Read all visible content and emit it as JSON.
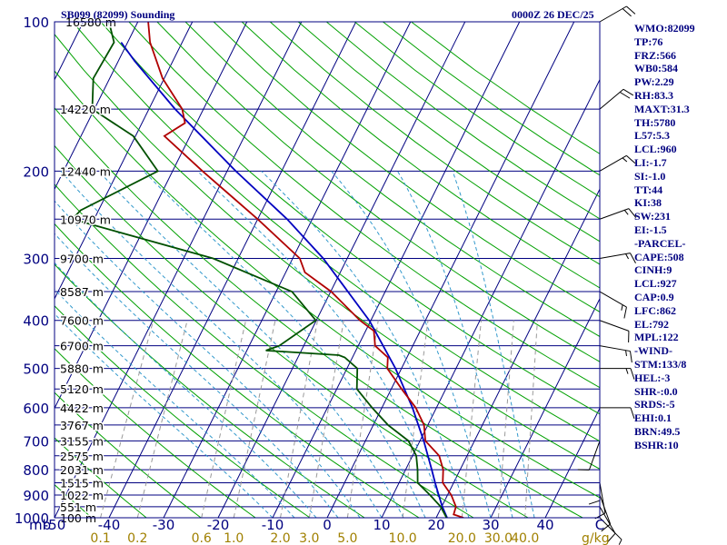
{
  "header": {
    "station": "SB099 (82099) Sounding",
    "time": "0000Z 26 DEC/25"
  },
  "indices": [
    "WMO:82099",
    "TP:76",
    "FRZ:566",
    "WB0:584",
    "PW:2.29",
    "RH:83.3",
    "MAXT:31.3",
    "TH:5780",
    "L57:5.3",
    "LCL:960",
    "LI:-1.7",
    "SI:-1.0",
    "TT:44",
    "KI:38",
    "SW:231",
    "EI:-1.5",
    "-PARCEL-",
    "CAPE:508",
    "CINH:9",
    "LCL:927",
    "CAP:0.9",
    "LFC:862",
    "EL:792",
    "MPL:122",
    "-WIND-",
    "STM:133/8",
    "HEL:-3",
    "SHR-:0.0",
    "SRDS:-5",
    "EHI:0.1",
    "BRN:49.5",
    "BSHR:10"
  ],
  "colors": {
    "background": "#ffffff",
    "isobar": "#000080",
    "isotherm": "#000080",
    "dry_adiabat": "#00a000",
    "moist_adiabat": "#3399cc",
    "mixing_ratio": "#999999",
    "temperature": "#b00000",
    "dewpoint": "#005000",
    "parcel": "#0000c0",
    "wind_barbs": "#000000",
    "axis_text": "#000080",
    "mixing_text": "#a08000"
  },
  "chart_data": {
    "type": "line",
    "title": "SB099 (82099) Sounding",
    "subtitle": "0000Z 26 DEC/25",
    "pressure_axis": {
      "label": "mb",
      "scale": "log",
      "range": [
        1000,
        100
      ],
      "ticks": [
        100,
        200,
        300,
        400,
        500,
        600,
        700,
        800,
        900,
        1000
      ],
      "tick_labels": [
        "100",
        "200",
        "300",
        "400",
        "500",
        "600",
        "700",
        "800",
        "900",
        "1000"
      ]
    },
    "temperature_axis": {
      "range": [
        -50,
        50
      ],
      "ticks": [
        -50,
        -40,
        -30,
        -20,
        -10,
        0,
        10,
        20,
        30,
        40,
        50
      ],
      "tick_labels": [
        "-50",
        "-40",
        "-30",
        "-20",
        "-10",
        "0",
        "10",
        "20",
        "30",
        "40",
        "C"
      ]
    },
    "mixing_ratio_axis": {
      "unit": "g/kg",
      "values": [
        0.1,
        0.2,
        0.6,
        1.0,
        2.0,
        3.0,
        5.0,
        10.0,
        20.0,
        30.0,
        40.0
      ],
      "labels": [
        "0.1",
        "0.2",
        "0.6",
        "1.0",
        "2.0",
        "3.0",
        "5.0",
        "10.0",
        "20.0",
        "30.0",
        "40.0"
      ]
    },
    "heights": [
      {
        "p": 100,
        "label": "16580 m"
      },
      {
        "p": 150,
        "label": "14220 m"
      },
      {
        "p": 200,
        "label": "12440 m"
      },
      {
        "p": 250,
        "label": "10970 m"
      },
      {
        "p": 300,
        "label": "9700 m"
      },
      {
        "p": 350,
        "label": "8587 m"
      },
      {
        "p": 400,
        "label": "7600 m"
      },
      {
        "p": 450,
        "label": "6700 m"
      },
      {
        "p": 500,
        "label": "5880 m"
      },
      {
        "p": 550,
        "label": "5120 m"
      },
      {
        "p": 600,
        "label": "4422 m"
      },
      {
        "p": 650,
        "label": "3767 m"
      },
      {
        "p": 700,
        "label": "3155 m"
      },
      {
        "p": 750,
        "label": "2575 m"
      },
      {
        "p": 800,
        "label": "2031 m"
      },
      {
        "p": 850,
        "label": "1515 m"
      },
      {
        "p": 900,
        "label": "1022 m"
      },
      {
        "p": 950,
        "label": "551 m"
      },
      {
        "p": 1000,
        "label": "100 m"
      }
    ],
    "temperature": [
      {
        "p": 1000,
        "t": 25.0
      },
      {
        "p": 985,
        "t": 22.9
      },
      {
        "p": 950,
        "t": 22.6
      },
      {
        "p": 900,
        "t": 20.7
      },
      {
        "p": 850,
        "t": 18.0
      },
      {
        "p": 800,
        "t": 16.9
      },
      {
        "p": 750,
        "t": 14.9
      },
      {
        "p": 700,
        "t": 11.0
      },
      {
        "p": 650,
        "t": 9.3
      },
      {
        "p": 600,
        "t": 6.2
      },
      {
        "p": 550,
        "t": 1.9
      },
      {
        "p": 500,
        "t": -2.6
      },
      {
        "p": 475,
        "t": -3.5
      },
      {
        "p": 450,
        "t": -6.9
      },
      {
        "p": 420,
        "t": -8.5
      },
      {
        "p": 400,
        "t": -12.0
      },
      {
        "p": 350,
        "t": -19.9
      },
      {
        "p": 320,
        "t": -26.5
      },
      {
        "p": 300,
        "t": -28.7
      },
      {
        "p": 250,
        "t": -40.0
      },
      {
        "p": 200,
        "t": -54.5
      },
      {
        "p": 170,
        "t": -64.7
      },
      {
        "p": 160,
        "t": -62.1
      },
      {
        "p": 150,
        "t": -63.9
      },
      {
        "p": 130,
        "t": -70.3
      },
      {
        "p": 110,
        "t": -75.9
      },
      {
        "p": 100,
        "t": -78.1
      }
    ],
    "dewpoint": [
      {
        "p": 1000,
        "t": 21.9
      },
      {
        "p": 950,
        "t": 19.8
      },
      {
        "p": 900,
        "t": 16.8
      },
      {
        "p": 850,
        "t": 13.4
      },
      {
        "p": 800,
        "t": 12.2
      },
      {
        "p": 750,
        "t": 10.7
      },
      {
        "p": 700,
        "t": 7.9
      },
      {
        "p": 650,
        "t": 2.7
      },
      {
        "p": 600,
        "t": -1.8
      },
      {
        "p": 550,
        "t": -6.3
      },
      {
        "p": 500,
        "t": -8.1
      },
      {
        "p": 475,
        "t": -11.4
      },
      {
        "p": 470,
        "t": -12.7
      },
      {
        "p": 460,
        "t": -26.5
      },
      {
        "p": 450,
        "t": -24.5
      },
      {
        "p": 400,
        "t": -20.1
      },
      {
        "p": 350,
        "t": -27.1
      },
      {
        "p": 300,
        "t": -44.6
      },
      {
        "p": 250,
        "t": -74.0
      },
      {
        "p": 240,
        "t": -73.3
      },
      {
        "p": 200,
        "t": -62.7
      },
      {
        "p": 170,
        "t": -70.4
      },
      {
        "p": 150,
        "t": -80.4
      },
      {
        "p": 130,
        "t": -83.0
      },
      {
        "p": 110,
        "t": -82.5
      },
      {
        "p": 100,
        "t": -85.3
      }
    ],
    "parcel": [
      {
        "p": 1000,
        "t": 22.0
      },
      {
        "p": 950,
        "t": 20.1
      },
      {
        "p": 900,
        "t": 18.4
      },
      {
        "p": 850,
        "t": 16.6
      },
      {
        "p": 800,
        "t": 14.8
      },
      {
        "p": 700,
        "t": 10.7
      },
      {
        "p": 600,
        "t": 5.6
      },
      {
        "p": 500,
        "t": -1.1
      },
      {
        "p": 400,
        "t": -10.3
      },
      {
        "p": 300,
        "t": -24.4
      },
      {
        "p": 250,
        "t": -34.6
      },
      {
        "p": 200,
        "t": -48.4
      },
      {
        "p": 150,
        "t": -65.2
      },
      {
        "p": 120,
        "t": -77.0
      },
      {
        "p": 110,
        "t": -81.2
      }
    ],
    "wind_barbs": [
      {
        "p": 1000,
        "dir": 135,
        "spd": 5
      },
      {
        "p": 950,
        "dir": 150,
        "spd": 10
      },
      {
        "p": 900,
        "dir": 160,
        "spd": 10
      },
      {
        "p": 850,
        "dir": 170,
        "spd": 10
      },
      {
        "p": 800,
        "dir": 180,
        "spd": 10
      },
      {
        "p": 700,
        "dir": 200,
        "spd": 10
      },
      {
        "p": 600,
        "dir": 90,
        "spd": 10
      },
      {
        "p": 500,
        "dir": 90,
        "spd": 15
      },
      {
        "p": 450,
        "dir": 100,
        "spd": 15
      },
      {
        "p": 400,
        "dir": 110,
        "spd": 10
      },
      {
        "p": 350,
        "dir": 120,
        "spd": 15
      },
      {
        "p": 300,
        "dir": 80,
        "spd": 15
      },
      {
        "p": 250,
        "dir": 70,
        "spd": 15
      },
      {
        "p": 200,
        "dir": 60,
        "spd": 15
      },
      {
        "p": 150,
        "dir": 50,
        "spd": 20
      },
      {
        "p": 100,
        "dir": 60,
        "spd": 20
      }
    ]
  }
}
